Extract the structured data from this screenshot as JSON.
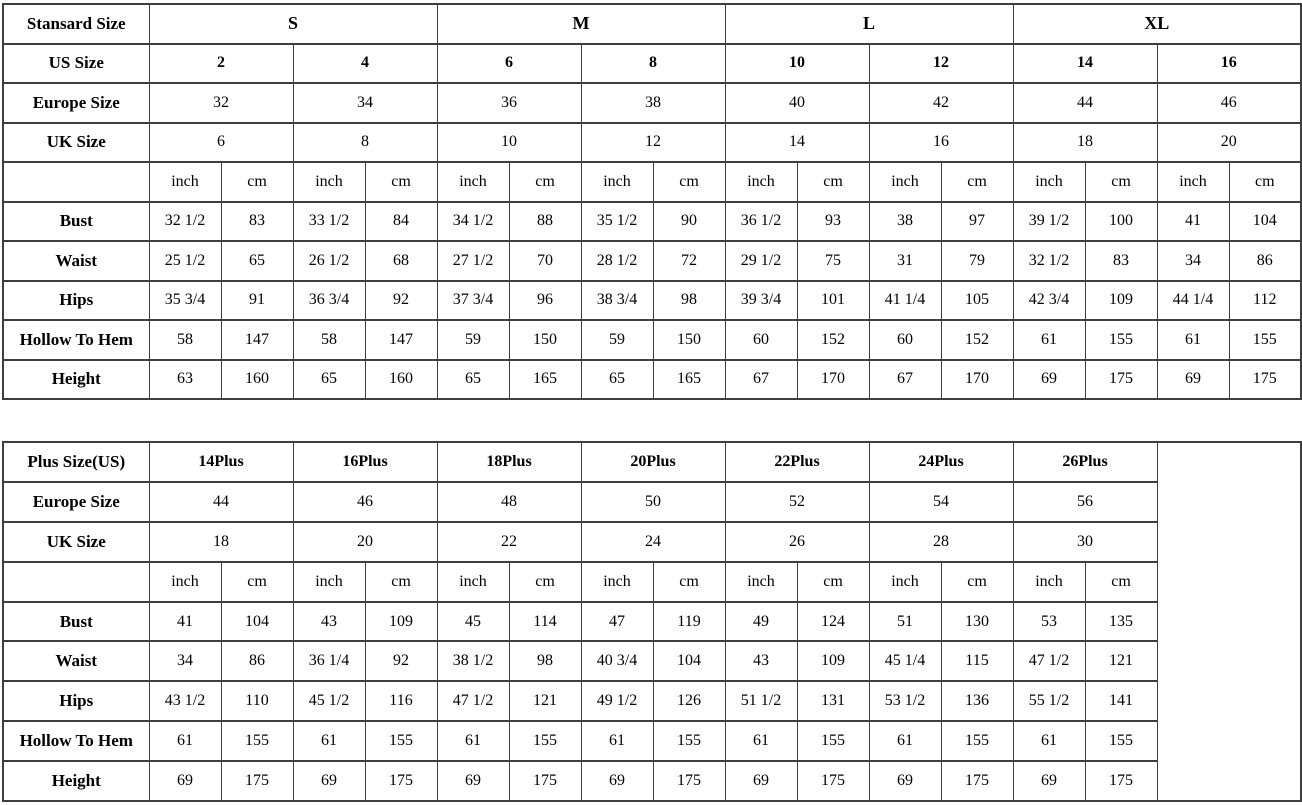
{
  "page": {
    "background_color": "#ffffff",
    "text_color": "#000000",
    "border_color": "#3e3e3e"
  },
  "units": {
    "inch": "inch",
    "cm": "cm"
  },
  "standard_table": {
    "corner_label": "Stansard Size",
    "size_row": [
      "S",
      "M",
      "L",
      "XL"
    ],
    "us_label": "US Size",
    "us_values": [
      "2",
      "4",
      "6",
      "8",
      "10",
      "12",
      "14",
      "16"
    ],
    "europe_label": "Europe Size",
    "europe_values": [
      "32",
      "34",
      "36",
      "38",
      "40",
      "42",
      "44",
      "46"
    ],
    "uk_label": "UK Size",
    "uk_values": [
      "6",
      "8",
      "10",
      "12",
      "14",
      "16",
      "18",
      "20"
    ],
    "measurements": [
      {
        "label": "Bust",
        "values": [
          "32 1/2",
          "83",
          "33 1/2",
          "84",
          "34 1/2",
          "88",
          "35 1/2",
          "90",
          "36 1/2",
          "93",
          "38",
          "97",
          "39 1/2",
          "100",
          "41",
          "104"
        ]
      },
      {
        "label": "Waist",
        "values": [
          "25 1/2",
          "65",
          "26 1/2",
          "68",
          "27 1/2",
          "70",
          "28 1/2",
          "72",
          "29 1/2",
          "75",
          "31",
          "79",
          "32 1/2",
          "83",
          "34",
          "86"
        ]
      },
      {
        "label": "Hips",
        "values": [
          "35 3/4",
          "91",
          "36 3/4",
          "92",
          "37 3/4",
          "96",
          "38 3/4",
          "98",
          "39 3/4",
          "101",
          "41 1/4",
          "105",
          "42 3/4",
          "109",
          "44 1/4",
          "112"
        ]
      },
      {
        "label": "Hollow To Hem",
        "values": [
          "58",
          "147",
          "58",
          "147",
          "59",
          "150",
          "59",
          "150",
          "60",
          "152",
          "60",
          "152",
          "61",
          "155",
          "61",
          "155"
        ]
      },
      {
        "label": "Height",
        "values": [
          "63",
          "160",
          "65",
          "160",
          "65",
          "165",
          "65",
          "165",
          "67",
          "170",
          "67",
          "170",
          "69",
          "175",
          "69",
          "175"
        ]
      }
    ]
  },
  "plus_table": {
    "corner_label": "Plus Size(US)",
    "size_row": [
      "14Plus",
      "16Plus",
      "18Plus",
      "20Plus",
      "22Plus",
      "24Plus",
      "26Plus"
    ],
    "europe_label": "Europe Size",
    "europe_values": [
      "44",
      "46",
      "48",
      "50",
      "52",
      "54",
      "56"
    ],
    "uk_label": "UK Size",
    "uk_values": [
      "18",
      "20",
      "22",
      "24",
      "26",
      "28",
      "30"
    ],
    "measurements": [
      {
        "label": "Bust",
        "values": [
          "41",
          "104",
          "43",
          "109",
          "45",
          "114",
          "47",
          "119",
          "49",
          "124",
          "51",
          "130",
          "53",
          "135"
        ]
      },
      {
        "label": "Waist",
        "values": [
          "34",
          "86",
          "36 1/4",
          "92",
          "38 1/2",
          "98",
          "40 3/4",
          "104",
          "43",
          "109",
          "45 1/4",
          "115",
          "47 1/2",
          "121"
        ]
      },
      {
        "label": "Hips",
        "values": [
          "43 1/2",
          "110",
          "45 1/2",
          "116",
          "47 1/2",
          "121",
          "49 1/2",
          "126",
          "51 1/2",
          "131",
          "53 1/2",
          "136",
          "55 1/2",
          "141"
        ]
      },
      {
        "label": "Hollow To Hem",
        "values": [
          "61",
          "155",
          "61",
          "155",
          "61",
          "155",
          "61",
          "155",
          "61",
          "155",
          "61",
          "155",
          "61",
          "155"
        ]
      },
      {
        "label": "Height",
        "values": [
          "69",
          "175",
          "69",
          "175",
          "69",
          "175",
          "69",
          "175",
          "69",
          "175",
          "69",
          "175",
          "69",
          "175"
        ]
      }
    ]
  }
}
